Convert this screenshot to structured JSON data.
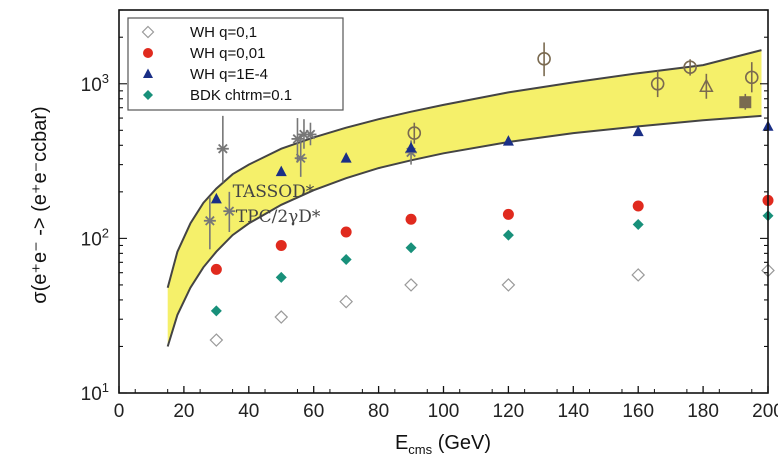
{
  "chart_data": {
    "type": "scatter",
    "x_axis": {
      "label_main": "E",
      "label_sub": "cms",
      "label_rest": " (GeV)",
      "range": [
        0,
        200
      ],
      "ticks": [
        0,
        20,
        40,
        60,
        80,
        100,
        120,
        140,
        160,
        180,
        200
      ]
    },
    "y_axis": {
      "label": "σ(e⁺e⁻ -> (e⁺e⁻ccbar)",
      "scale": "log",
      "range": [
        10,
        3000
      ],
      "tick_labels": [
        {
          "value": 10,
          "base": "10",
          "exp": "1"
        },
        {
          "value": 100,
          "base": "10",
          "exp": "2"
        },
        {
          "value": 1000,
          "base": "10",
          "exp": "3"
        }
      ]
    },
    "legend_position": "top-left",
    "series": [
      {
        "name": "WH q=0,1",
        "marker": "open-diamond",
        "color": "#9a9a9a",
        "x": [
          30,
          50,
          70,
          90,
          120,
          160,
          200
        ],
        "y": [
          22,
          31,
          39,
          50,
          50,
          58,
          62
        ]
      },
      {
        "name": "WH q=0,01",
        "marker": "circle",
        "color": "#e02a1e",
        "x": [
          30,
          50,
          70,
          90,
          120,
          160,
          200
        ],
        "y": [
          63,
          90,
          110,
          133,
          143,
          162,
          176
        ]
      },
      {
        "name": "WH q=1E-4",
        "marker": "triangle",
        "color": "#1a2f86",
        "x": [
          30,
          50,
          70,
          90,
          120,
          160,
          200
        ],
        "y": [
          180,
          270,
          330,
          385,
          425,
          490,
          530
        ]
      },
      {
        "name": "BDK chtrm=0.1",
        "marker": "diamond",
        "color": "#18907a",
        "x": [
          30,
          50,
          70,
          90,
          120,
          160,
          200
        ],
        "y": [
          34,
          56,
          73,
          87,
          105,
          123,
          140
        ]
      }
    ],
    "background_measurements": [
      {
        "marker": "star",
        "color": "#777777",
        "x": 28,
        "y": 130,
        "ylo": 85,
        "yhi": 185
      },
      {
        "marker": "star",
        "color": "#777777",
        "x": 32,
        "y": 380,
        "ylo": 230,
        "yhi": 620
      },
      {
        "marker": "star",
        "color": "#777777",
        "x": 34,
        "y": 150,
        "ylo": 110,
        "yhi": 200
      },
      {
        "marker": "star",
        "color": "#777777",
        "x": 55,
        "y": 440,
        "ylo": 310,
        "yhi": 600
      },
      {
        "marker": "star",
        "color": "#777777",
        "x": 56,
        "y": 330,
        "ylo": 250,
        "yhi": 440
      },
      {
        "marker": "star",
        "color": "#777777",
        "x": 57,
        "y": 470,
        "ylo": 380,
        "yhi": 590
      },
      {
        "marker": "star",
        "color": "#777777",
        "x": 59,
        "y": 470,
        "ylo": 400,
        "yhi": 560
      },
      {
        "marker": "star",
        "color": "#777777",
        "x": 90,
        "y": 360,
        "ylo": 300,
        "yhi": 430
      },
      {
        "marker": "open-circle",
        "color": "#7a6a50",
        "x": 91,
        "y": 480,
        "ylo": 410,
        "yhi": 560
      },
      {
        "marker": "open-circle",
        "color": "#7a6a50",
        "x": 131,
        "y": 1450,
        "ylo": 1120,
        "yhi": 1850
      },
      {
        "marker": "open-circle",
        "color": "#7a6a50",
        "x": 166,
        "y": 1000,
        "ylo": 820,
        "yhi": 1220
      },
      {
        "marker": "open-circle",
        "color": "#7a6a50",
        "x": 176,
        "y": 1280,
        "ylo": 1130,
        "yhi": 1440
      },
      {
        "marker": "open-triangle",
        "color": "#7a6a50",
        "x": 181,
        "y": 960,
        "ylo": 800,
        "yhi": 1160
      },
      {
        "marker": "open-circle",
        "color": "#7a6a50",
        "x": 195,
        "y": 1100,
        "ylo": 880,
        "yhi": 1380
      },
      {
        "marker": "square",
        "color": "#7a6a50",
        "x": 193,
        "y": 760,
        "ylo": 680,
        "yhi": 860
      }
    ],
    "band": {
      "color": "#f4ee5a",
      "edge_color": "#444444",
      "x": [
        15,
        18,
        22,
        26,
        30,
        35,
        40,
        50,
        60,
        70,
        80,
        90,
        100,
        120,
        140,
        160,
        180,
        198
      ],
      "upper": [
        48,
        82,
        125,
        170,
        210,
        260,
        300,
        380,
        450,
        520,
        590,
        660,
        730,
        880,
        1020,
        1170,
        1320,
        1650
      ],
      "lower": [
        20,
        32,
        48,
        65,
        82,
        105,
        125,
        165,
        205,
        245,
        285,
        320,
        355,
        420,
        480,
        530,
        580,
        620
      ]
    },
    "annotations": [
      {
        "text": "TASSOD*",
        "x": 35,
        "y": 185
      },
      {
        "text": "TPC/2γD*",
        "x": 36,
        "y": 128
      }
    ]
  }
}
